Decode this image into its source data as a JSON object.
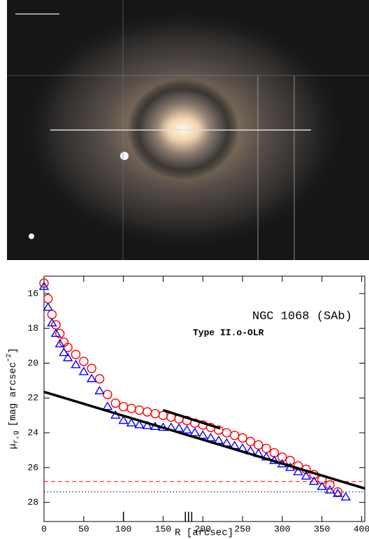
{
  "chart_data": {
    "type": "scatter",
    "annotation_title": "NGC 1068 (SAb)",
    "annotation_subtitle": "Type II.o-OLR",
    "xlabel": "R [arcsec]",
    "ylabel_symbol": "μ",
    "ylabel_sub": "r,g",
    "ylabel_unit": "[mag arcsec",
    "ylabel_exp": "−2",
    "ylabel_close": "]",
    "xlim": [
      0,
      404
    ],
    "ylim": [
      15,
      29.1
    ],
    "y_inverted": true,
    "xticks": [
      0,
      50,
      100,
      150,
      200,
      250,
      300,
      350,
      400
    ],
    "yticks": [
      16,
      18,
      20,
      22,
      24,
      26,
      28
    ],
    "break_marks": [
      100,
      178,
      182,
      186
    ],
    "series": [
      {
        "name": "r",
        "color": "#ff0000",
        "marker": "circle",
        "x": [
          0,
          5,
          10,
          15,
          20,
          25,
          30,
          40,
          50,
          60,
          70,
          80,
          90,
          100,
          110,
          120,
          130,
          140,
          150,
          160,
          170,
          180,
          190,
          200,
          210,
          220,
          230,
          240,
          250,
          260,
          270,
          280,
          290,
          300,
          310,
          320,
          330,
          340,
          350,
          360,
          370
        ],
        "values": [
          15.4,
          16.3,
          17.2,
          17.8,
          18.3,
          18.8,
          19.1,
          19.5,
          19.9,
          20.3,
          20.9,
          21.8,
          22.3,
          22.5,
          22.6,
          22.7,
          22.8,
          22.9,
          23.0,
          23.1,
          23.2,
          23.3,
          23.45,
          23.55,
          23.7,
          23.85,
          24.0,
          24.15,
          24.3,
          24.5,
          24.7,
          24.9,
          25.15,
          25.4,
          25.6,
          25.9,
          26.1,
          26.4,
          26.7,
          27.0,
          27.4
        ]
      },
      {
        "name": "g",
        "color": "#0000ff",
        "marker": "triangle",
        "x": [
          0,
          5,
          10,
          15,
          20,
          25,
          30,
          40,
          50,
          60,
          70,
          80,
          90,
          100,
          110,
          120,
          130,
          140,
          150,
          160,
          170,
          180,
          190,
          200,
          210,
          220,
          230,
          240,
          250,
          260,
          270,
          280,
          290,
          300,
          310,
          320,
          330,
          340,
          350,
          360,
          370,
          380
        ],
        "values": [
          15.6,
          16.8,
          17.7,
          18.3,
          18.9,
          19.4,
          19.7,
          20.1,
          20.5,
          20.9,
          21.6,
          22.5,
          23.0,
          23.3,
          23.45,
          23.55,
          23.6,
          23.65,
          23.7,
          23.7,
          23.75,
          23.85,
          24.0,
          24.15,
          24.3,
          24.45,
          24.6,
          24.75,
          24.9,
          25.05,
          25.2,
          25.4,
          25.6,
          25.8,
          26.0,
          26.25,
          26.5,
          26.8,
          27.1,
          27.3,
          27.5,
          27.7
        ]
      }
    ],
    "fits": [
      {
        "color": "#000000",
        "x": [
          0,
          404
        ],
        "values": [
          21.65,
          27.2
        ]
      },
      {
        "color": "#000000",
        "x": [
          150,
          222
        ],
        "values": [
          22.7,
          23.75
        ]
      }
    ],
    "hlines": [
      {
        "color": "#ff0000",
        "style": "dashed",
        "value": 26.8
      },
      {
        "color": "#000000",
        "style": "dotted",
        "value": 27.4
      }
    ]
  }
}
